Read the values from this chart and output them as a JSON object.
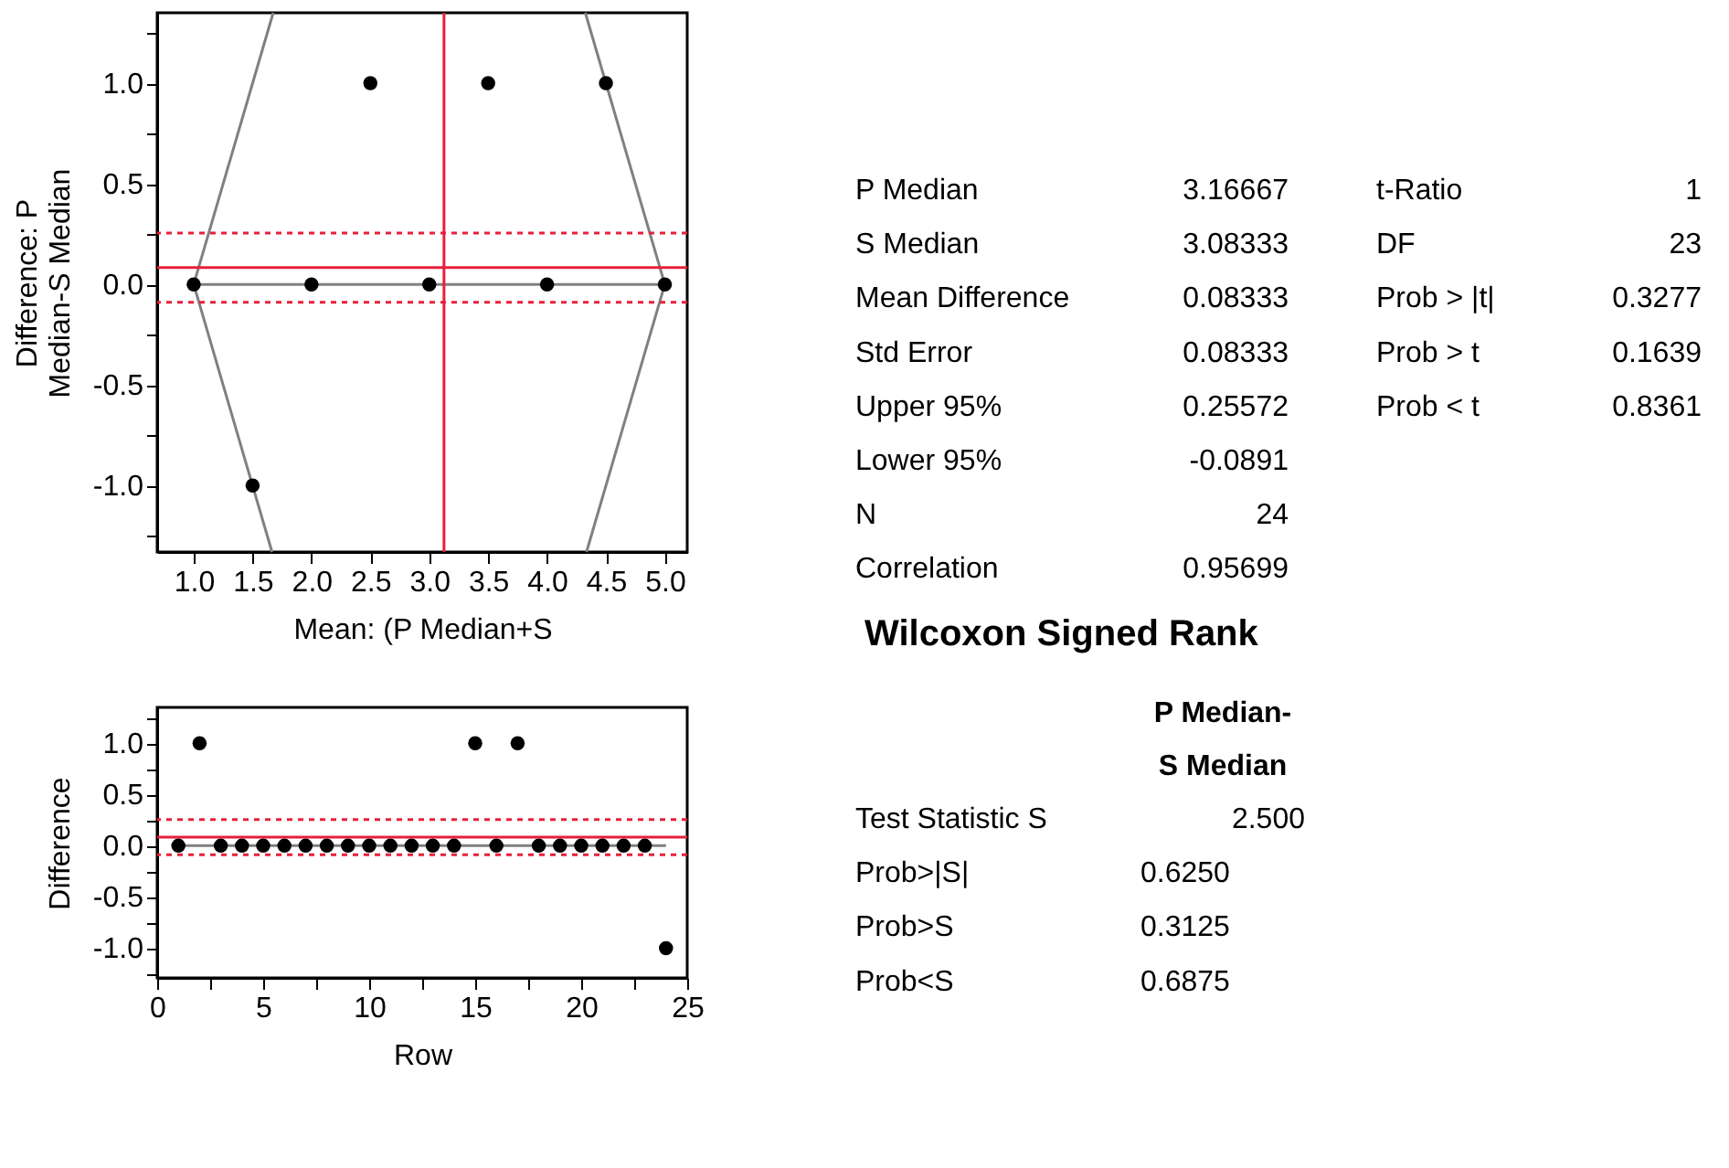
{
  "chart_data": [
    {
      "type": "scatter",
      "xlabel": "Mean: (P Median+S",
      "ylabel": "Difference: P\nMedian-S Median",
      "xlim": [
        0.69,
        5.19
      ],
      "xticks": [
        {
          "value": 1,
          "label": "1.0"
        },
        {
          "value": 1.5,
          "label": "1.5"
        },
        {
          "value": 2,
          "label": "2.0"
        },
        {
          "value": 2.5,
          "label": "2.5"
        },
        {
          "value": 3,
          "label": "3.0"
        },
        {
          "value": 3.5,
          "label": "3.5"
        },
        {
          "value": 4,
          "label": "4.0"
        },
        {
          "value": 4.5,
          "label": "4.5"
        },
        {
          "value": 5,
          "label": "5.0"
        }
      ],
      "ylim": [
        -1.33,
        1.35
      ],
      "yticks": [
        {
          "value": -1.25,
          "label": null
        },
        {
          "value": -1,
          "label": "-1.0"
        },
        {
          "value": -0.75,
          "label": null
        },
        {
          "value": -0.5,
          "label": "-0.5"
        },
        {
          "value": -0.25,
          "label": null
        },
        {
          "value": 0,
          "label": "0.0"
        },
        {
          "value": 0.25,
          "label": null
        },
        {
          "value": 0.5,
          "label": "0.5"
        },
        {
          "value": 0.75,
          "label": null
        },
        {
          "value": 1,
          "label": "1.0"
        },
        {
          "value": 1.25,
          "label": null
        }
      ],
      "series": [
        {
          "type": "line",
          "color": "#808080",
          "x": [
            1,
            5
          ],
          "values": [
            0,
            0
          ]
        },
        {
          "type": "line",
          "color": "#808080",
          "x": [
            1,
            1.675
          ],
          "values": [
            0,
            1.35
          ]
        },
        {
          "type": "line",
          "color": "#808080",
          "x": [
            1,
            1.665
          ],
          "values": [
            0,
            -1.33
          ]
        },
        {
          "type": "line",
          "color": "#808080",
          "x": [
            5,
            4.325
          ],
          "values": [
            0,
            1.35
          ]
        },
        {
          "type": "line",
          "color": "#808080",
          "x": [
            5,
            4.335
          ],
          "values": [
            0,
            -1.33
          ]
        },
        {
          "type": "scatter",
          "marker": "circle",
          "color": "#000000",
          "x": [
            1,
            1.5,
            2,
            2.5,
            3,
            3.5,
            4,
            4.5,
            5
          ],
          "values": [
            0,
            -1,
            0,
            1,
            0,
            1,
            0,
            1,
            0
          ]
        }
      ],
      "ref_lines": [
        {
          "axis": "y",
          "value": 0.08333,
          "color": "#e8203a",
          "line_style": "solid"
        },
        {
          "axis": "y",
          "value": 0.25572,
          "color": "#e8203a",
          "line_style": "dotted"
        },
        {
          "axis": "y",
          "value": -0.0891,
          "color": "#e8203a",
          "line_style": "dotted"
        },
        {
          "axis": "x",
          "value": 3.125,
          "color": "#e8203a",
          "line_style": "solid"
        }
      ]
    },
    {
      "type": "scatter",
      "xlabel": "Row",
      "ylabel": "Difference",
      "xlim": [
        0,
        25
      ],
      "xticks": [
        0,
        {
          "value": 2.5,
          "label": null
        },
        5,
        {
          "value": 7.5,
          "label": null
        },
        10,
        {
          "value": 12.5,
          "label": null
        },
        15,
        {
          "value": 17.5,
          "label": null
        },
        20,
        {
          "value": 22.5,
          "label": null
        },
        25
      ],
      "ylim": [
        -1.29,
        1.35
      ],
      "yticks": [
        {
          "value": -1.25,
          "label": null
        },
        {
          "value": -1,
          "label": "-1.0"
        },
        {
          "value": -0.75,
          "label": null
        },
        {
          "value": -0.5,
          "label": "-0.5"
        },
        {
          "value": -0.25,
          "label": null
        },
        {
          "value": 0,
          "label": "0.0"
        },
        {
          "value": 0.25,
          "label": null
        },
        {
          "value": 0.5,
          "label": "0.5"
        },
        {
          "value": 0.75,
          "label": null
        },
        {
          "value": 1,
          "label": "1.0"
        },
        {
          "value": 1.25,
          "label": null
        }
      ],
      "series": [
        {
          "type": "line",
          "color": "#808080",
          "x": [
            1,
            24
          ],
          "values": [
            0,
            0
          ]
        },
        {
          "type": "scatter",
          "marker": "circle",
          "color": "#000000",
          "x": [
            1,
            2,
            3,
            4,
            5,
            6,
            7,
            8,
            9,
            10,
            11,
            12,
            13,
            14,
            15,
            16,
            17,
            18,
            19,
            20,
            21,
            22,
            23,
            24
          ],
          "values": [
            0,
            1,
            0,
            0,
            0,
            0,
            0,
            0,
            0,
            0,
            0,
            0,
            0,
            0,
            1,
            0,
            1,
            0,
            0,
            0,
            0,
            0,
            0,
            -1
          ]
        }
      ],
      "ref_lines": [
        {
          "axis": "y",
          "value": 0.08333,
          "color": "#e8203a",
          "line_style": "solid"
        },
        {
          "axis": "y",
          "value": 0.25572,
          "color": "#e8203a",
          "line_style": "dotted"
        },
        {
          "axis": "y",
          "value": -0.0891,
          "color": "#e8203a",
          "line_style": "dotted"
        }
      ]
    },
    {
      "type": "other",
      "annotations": [
        "P Median",
        "3.16667",
        "S Median",
        "3.08333",
        "Mean Difference",
        "0.08333",
        "Std Error",
        "0.08333",
        "Upper 95%",
        "0.25572",
        "Lower 95%",
        "-0.0891",
        "N",
        "24",
        "Correlation",
        "0.95699",
        "t-Ratio",
        "1",
        "DF",
        "23",
        "Prob > |t|",
        "0.3277",
        "Prob > t",
        "0.1639",
        "Prob < t",
        "0.8361"
      ]
    },
    {
      "type": "other",
      "title": "Wilcoxon Signed Rank",
      "subtitle": "P Median-\nS Median",
      "annotations": [
        "Test Statistic S",
        "2.500",
        "Prob>|S|",
        "0.6250",
        "Prob>S",
        "0.3125",
        "Prob<S",
        "0.6875"
      ]
    }
  ]
}
